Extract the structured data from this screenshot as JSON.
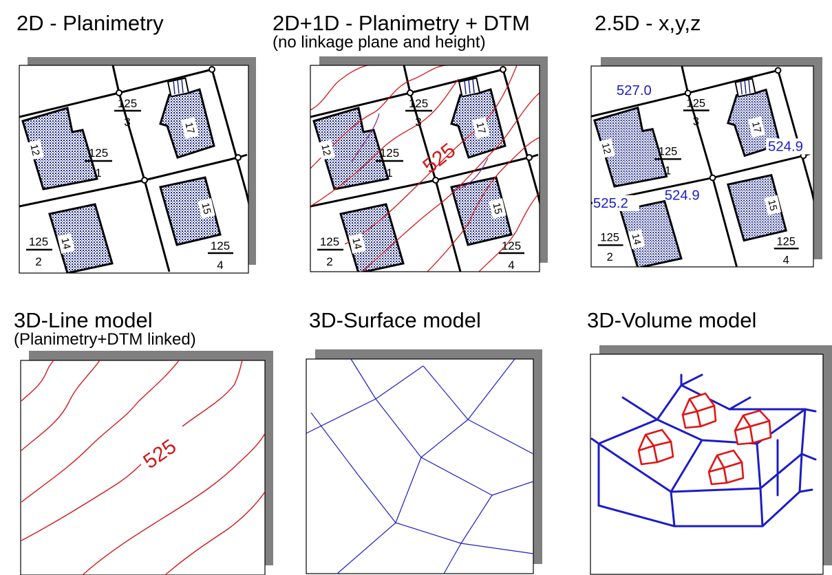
{
  "panels": {
    "p2d": {
      "title": "2D - Planimetry"
    },
    "p2d1d": {
      "title": "2D+1D - Planimetry + DTM",
      "subtitle": "(no linkage plane and height)"
    },
    "p25d": {
      "title": "2.5D - x,y,z"
    },
    "line3d": {
      "title": "3D-Line model",
      "subtitle": "(Planimetry+DTM linked)"
    },
    "surface3d": {
      "title": "3D-Surface model"
    },
    "volume3d": {
      "title": "3D-Volume model"
    }
  },
  "parcels": [
    {
      "num": "125",
      "den": "3"
    },
    {
      "num": "125",
      "den": "1"
    },
    {
      "num": "125",
      "den": "2"
    },
    {
      "num": "125",
      "den": "4"
    }
  ],
  "houses": [
    "12",
    "17",
    "14",
    "15"
  ],
  "contour_label": "525",
  "heights": [
    "527.0",
    "524.9",
    "525.2",
    "524.9"
  ],
  "colors": {
    "contour": "#d21818",
    "network": "#1c1cc8",
    "house_fill": "#1a237e",
    "shadow": "#808080"
  }
}
